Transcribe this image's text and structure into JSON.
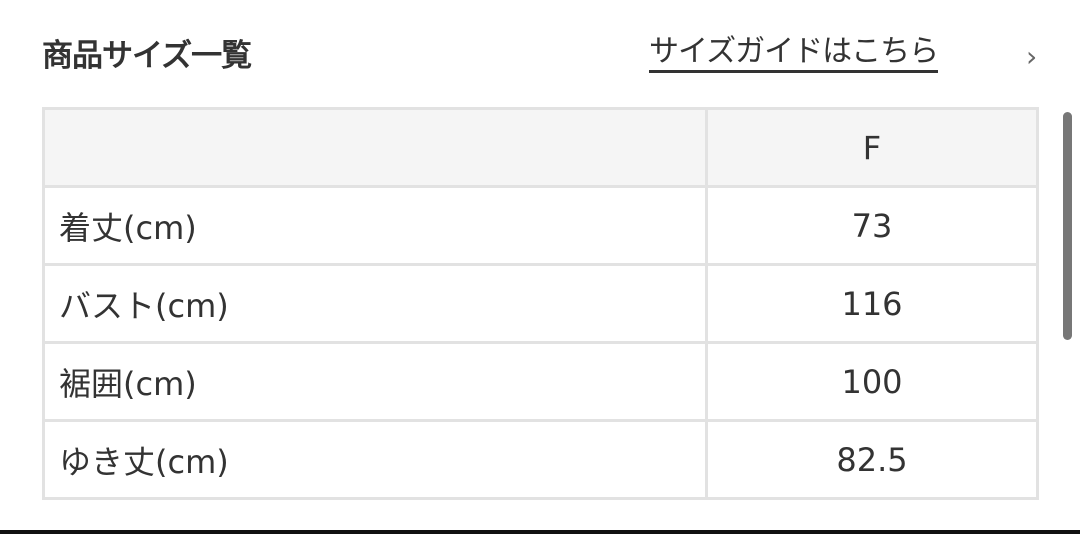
{
  "header": {
    "title": "商品サイズ一覧",
    "guide_link": "サイズガイドはこちら",
    "guide_icon": "chevron-right-icon"
  },
  "table": {
    "columns": [
      "",
      "F"
    ],
    "rows": [
      {
        "label": "着丈(cm)",
        "value": "73"
      },
      {
        "label": "バスト(cm)",
        "value": "116"
      },
      {
        "label": "裾囲(cm)",
        "value": "100"
      },
      {
        "label": "ゆき丈(cm)",
        "value": "82.5"
      }
    ]
  }
}
